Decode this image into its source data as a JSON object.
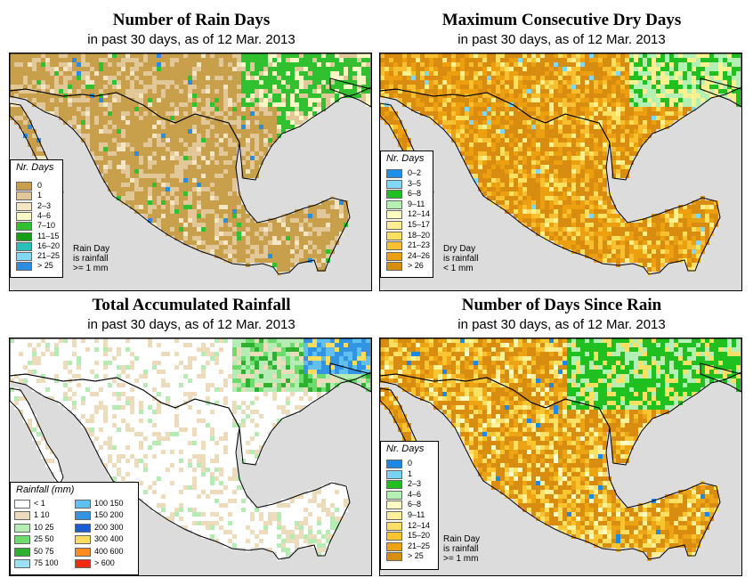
{
  "panels": {
    "rain_days": {
      "title": "Number of Rain Days",
      "subtitle": "in past 30 days, as of  12 Mar. 2013",
      "legend_title": "Nr. Days",
      "legend": [
        {
          "label": "0",
          "color": "#c8a04c"
        },
        {
          "label": "1",
          "color": "#e2c898"
        },
        {
          "label": "2–3",
          "color": "#f4e6c4"
        },
        {
          "label": "4–6",
          "color": "#f8f8c4"
        },
        {
          "label": "7–10",
          "color": "#30c030"
        },
        {
          "label": "11–15",
          "color": "#14a014"
        },
        {
          "label": "16–20",
          "color": "#28c0b8"
        },
        {
          "label": "21–25",
          "color": "#80d8f4"
        },
        {
          "label": "> 25",
          "color": "#2c8ce0"
        }
      ],
      "note": [
        "Rain Day",
        "is rainfall",
        ">= 1 mm"
      ]
    },
    "dry_days": {
      "title": "Maximum Consecutive Dry Days",
      "subtitle": "in past 30 days, as of  12 Mar. 2013",
      "legend_title": "Nr. Days",
      "legend": [
        {
          "label": "0–2",
          "color": "#1e90e8"
        },
        {
          "label": "3–5",
          "color": "#80d8f4"
        },
        {
          "label": "6–8",
          "color": "#20c020"
        },
        {
          "label": "9–11",
          "color": "#b4f0b4"
        },
        {
          "label": "12–14",
          "color": "#fcfcc0"
        },
        {
          "label": "15–17",
          "color": "#fcf090"
        },
        {
          "label": "18–20",
          "color": "#fce060"
        },
        {
          "label": "21–23",
          "color": "#f8c030"
        },
        {
          "label": "24–26",
          "color": "#eca010"
        },
        {
          "label": "> 26",
          "color": "#d88c10"
        }
      ],
      "note": [
        "Dry Day",
        "is rainfall",
        "< 1 mm"
      ]
    },
    "rainfall": {
      "title": "Total Accumulated Rainfall",
      "subtitle": "in past 30 days, as of  12 Mar. 2013",
      "legend_title": "Rainfall (mm)",
      "legend_left": [
        {
          "label": "< 1",
          "color": "#ffffff"
        },
        {
          "label": "1    10",
          "color": "#ecdcbc"
        },
        {
          "label": "10    25",
          "color": "#b4ecb4"
        },
        {
          "label": "25    50",
          "color": "#6cdc6c"
        },
        {
          "label": "50    75",
          "color": "#30b030"
        },
        {
          "label": "75   100",
          "color": "#9ce0f4"
        }
      ],
      "legend_right": [
        {
          "label": "100   150",
          "color": "#60c0f0"
        },
        {
          "label": "150   200",
          "color": "#3494e4"
        },
        {
          "label": "200   300",
          "color": "#1c5cd0"
        },
        {
          "label": "300   400",
          "color": "#fcdc60"
        },
        {
          "label": "400   600",
          "color": "#fc8c20"
        },
        {
          "label": "> 600",
          "color": "#f02c10"
        }
      ]
    },
    "since_rain": {
      "title": "Number of Days Since Rain",
      "subtitle": "in past 30 days, as of  12 Mar. 2013",
      "legend_title": "Nr. Days",
      "legend": [
        {
          "label": "0",
          "color": "#1c88e8"
        },
        {
          "label": "1",
          "color": "#78d4f4"
        },
        {
          "label": "2–3",
          "color": "#20c020"
        },
        {
          "label": "4–6",
          "color": "#b4f0b4"
        },
        {
          "label": "6–8",
          "color": "#fcfcc4"
        },
        {
          "label": "9–11",
          "color": "#fcf098"
        },
        {
          "label": "12–14",
          "color": "#fce064"
        },
        {
          "label": "15–20",
          "color": "#f8c430"
        },
        {
          "label": "21–25",
          "color": "#eca414"
        },
        {
          "label": "> 25",
          "color": "#d88c10"
        }
      ],
      "note": [
        "Rain Day",
        "is rainfall",
        ">= 1 mm"
      ]
    }
  },
  "colors": {
    "ocean": "#dcdcdc",
    "border_line": "#000000"
  }
}
